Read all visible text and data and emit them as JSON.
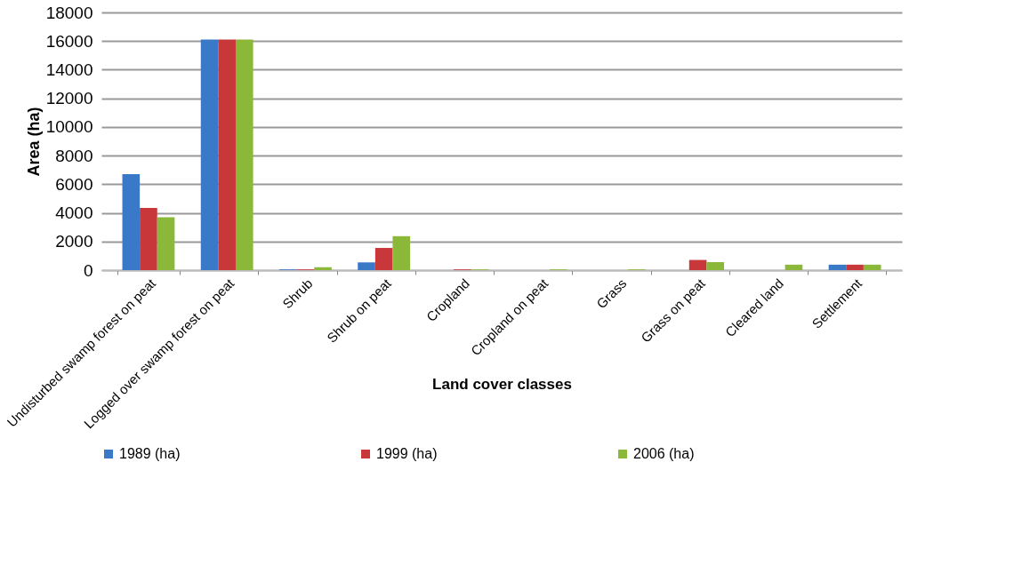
{
  "chart_data": {
    "type": "bar",
    "xlabel": "Land cover classes",
    "ylabel": "Area (ha)",
    "categories": [
      "Undisturbed swamp forest on peat",
      "Logged over swamp forest on peat",
      "Shrub",
      "Shrub on peat",
      "Cropland",
      "Cropland on peat",
      "Grass",
      "Grass on peat",
      "Cleared land",
      "Settlement"
    ],
    "series": [
      {
        "name": "1989 (ha)",
        "color": "#3a78c8",
        "values": [
          6700,
          16100,
          50,
          540,
          0,
          0,
          0,
          0,
          0,
          380
        ]
      },
      {
        "name": "1999 (ha)",
        "color": "#c8383a",
        "values": [
          4350,
          16100,
          50,
          1550,
          50,
          0,
          0,
          710,
          0,
          380
        ]
      },
      {
        "name": "2006 (ha)",
        "color": "#8cb83a",
        "values": [
          3700,
          16100,
          200,
          2370,
          50,
          50,
          50,
          560,
          380,
          380
        ]
      }
    ],
    "ylim": [
      0,
      18000
    ],
    "yticks": [
      0,
      2000,
      4000,
      6000,
      8000,
      10000,
      12000,
      14000,
      16000,
      18000
    ],
    "grid": "y",
    "legend": "bottom"
  }
}
